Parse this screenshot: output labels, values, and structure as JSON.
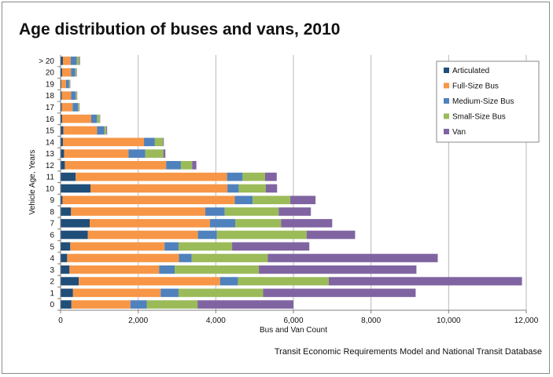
{
  "title": "Age distribution of buses and vans, 2010",
  "source": "Transit Economic Requirements Model and National Transit Database",
  "chart_data": {
    "type": "bar",
    "orientation": "horizontal",
    "stacked": true,
    "categories": [
      "0",
      "1",
      "2",
      "3",
      "4",
      "5",
      "6",
      "7",
      "8",
      "9",
      "10",
      "11",
      "12",
      "13",
      "14",
      "15",
      "16",
      "17",
      "18",
      "19",
      "20",
      "> 20"
    ],
    "series": [
      {
        "name": "Articulated",
        "color": "#1f4e79",
        "values": [
          280,
          320,
          470,
          230,
          170,
          250,
          700,
          750,
          270,
          50,
          770,
          390,
          110,
          90,
          60,
          70,
          40,
          30,
          30,
          20,
          40,
          60
        ]
      },
      {
        "name": "Full-Size Bus",
        "color": "#f79646",
        "values": [
          1520,
          2260,
          3640,
          2310,
          2880,
          2430,
          2840,
          3100,
          3460,
          4440,
          3530,
          3900,
          2610,
          1660,
          2090,
          870,
          750,
          280,
          240,
          120,
          230,
          200
        ]
      },
      {
        "name": "Medium-Size Bus",
        "color": "#4f81bd",
        "values": [
          420,
          460,
          460,
          400,
          330,
          360,
          490,
          650,
          500,
          460,
          290,
          400,
          380,
          430,
          280,
          190,
          150,
          140,
          120,
          80,
          110,
          160
        ]
      },
      {
        "name": "Small-Size Bus",
        "color": "#9bbb59",
        "values": [
          1310,
          2180,
          2340,
          2170,
          1960,
          1380,
          2310,
          1180,
          1390,
          970,
          700,
          580,
          290,
          470,
          210,
          50,
          70,
          30,
          30,
          20,
          30,
          60
        ]
      },
      {
        "name": "Van",
        "color": "#8064a2",
        "values": [
          2470,
          3930,
          4980,
          4060,
          4380,
          1990,
          1250,
          1320,
          830,
          650,
          290,
          300,
          110,
          50,
          20,
          20,
          10,
          10,
          10,
          10,
          10,
          20
        ]
      }
    ],
    "xlabel": "Bus and Van Count",
    "ylabel": "Vehicle Age, Years",
    "xlim": [
      0,
      12000
    ],
    "xticks": [
      0,
      2000,
      4000,
      6000,
      8000,
      10000,
      12000
    ],
    "xtick_labels": [
      "0",
      "2,000",
      "4,000",
      "6,000",
      "8,000",
      "10,000",
      "12,000"
    ],
    "grid": true,
    "legend_position": "top-right"
  }
}
